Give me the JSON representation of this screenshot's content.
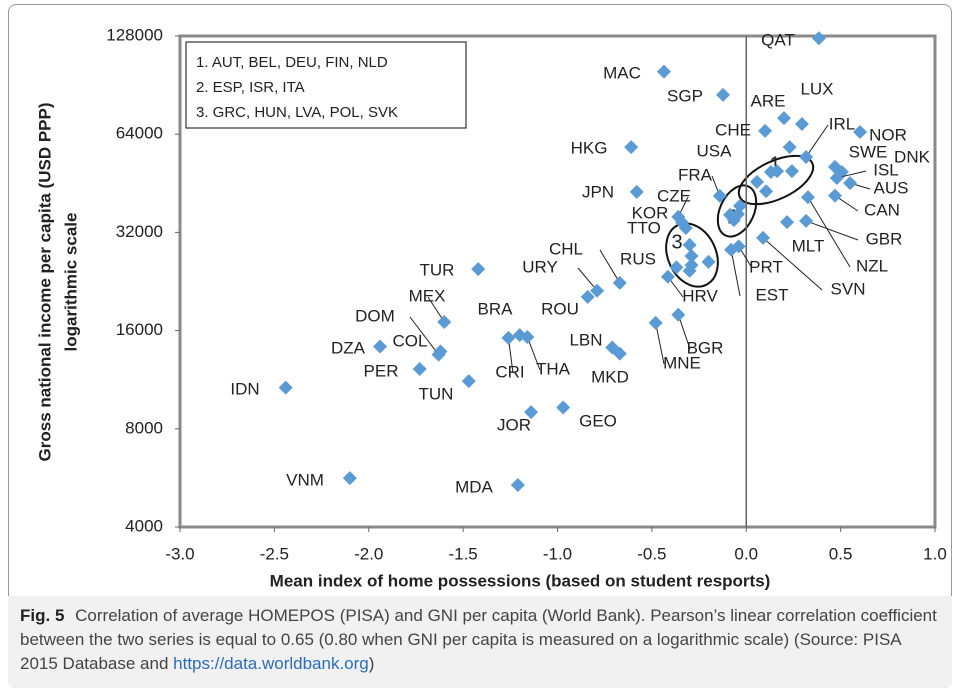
{
  "chart_data": {
    "type": "scatter",
    "xlabel": "Mean index of home possessions (based on student resports)",
    "ylabel": [
      "Gross national income per capita (USD PPP)",
      "logarithmic scale"
    ],
    "log_y": true,
    "color": "#5b9bd5",
    "xlim": [
      -3,
      1
    ],
    "xticks": [
      {
        "value": -3,
        "label": "-3.0"
      },
      {
        "value": -2.5,
        "label": "-2.5"
      },
      {
        "value": -2,
        "label": "-2.0"
      },
      {
        "value": -1.5,
        "label": "-1.5"
      },
      {
        "value": -1,
        "label": "-1.0"
      },
      {
        "value": -0.5,
        "label": "-0.5"
      },
      {
        "value": 0,
        "label": "0.0"
      },
      {
        "value": 0.5,
        "label": "0.5"
      },
      {
        "value": 1,
        "label": "1.0"
      }
    ],
    "ylim": [
      4000,
      128000
    ],
    "yticks": [
      4000,
      8000,
      16000,
      32000,
      64000,
      128000
    ],
    "labels": [
      "QAT",
      "MAC",
      "SGP",
      "ARE",
      "LUX",
      "CHE",
      "NOR",
      "HKG",
      "USA",
      "IRL",
      "SWE",
      "DNK",
      "ISL",
      "AUS",
      "CAN",
      "JPN",
      "FRA",
      "CZE",
      "KOR",
      "TTO",
      "GBR",
      "MLT",
      "NZL",
      "PRT",
      "SVN",
      "EST",
      "HRV",
      "RUS",
      "CHL",
      "URY",
      "ROU",
      "TUR",
      "BRA",
      "CRI",
      "THA",
      "MEX",
      "DOM",
      "COL",
      "DZA",
      "PER",
      "TUN",
      "IDN",
      "LBN",
      "MKD",
      "MNE",
      "BGR",
      "GEO",
      "JOR",
      "VNM",
      "MDA",
      null,
      null,
      null,
      null,
      null,
      null,
      null,
      null,
      null,
      null,
      null,
      null,
      null,
      null
    ],
    "x": [
      0.385,
      -0.436,
      -0.123,
      0.2,
      0.295,
      0.1,
      0.603,
      -0.61,
      0.23,
      0.317,
      0.47,
      0.507,
      0.48,
      0.55,
      0.47,
      -0.58,
      -0.14,
      -0.36,
      -0.34,
      -0.32,
      0.317,
      0.216,
      0.327,
      -0.04,
      0.089,
      -0.08,
      -0.415,
      -0.37,
      -0.67,
      -0.79,
      -0.84,
      -1.42,
      -1.2,
      -1.26,
      -1.16,
      -1.6,
      -1.63,
      -1.62,
      -1.94,
      -1.73,
      -1.47,
      -2.44,
      -0.71,
      -0.67,
      -0.48,
      -0.36,
      -0.97,
      -1.14,
      -2.1,
      -1.21,
      0.057,
      0.131,
      0.163,
      0.242,
      0.105,
      -0.086,
      -0.065,
      -0.044,
      -0.033,
      -0.3,
      -0.29,
      -0.29,
      -0.3,
      -0.2
    ],
    "values": [
      126000,
      99500,
      84500,
      71700,
      68800,
      65500,
      65000,
      58400,
      58400,
      54500,
      50800,
      49000,
      47000,
      45300,
      41500,
      42600,
      41400,
      35700,
      34300,
      33000,
      34700,
      34400,
      41000,
      29000,
      30800,
      28300,
      23400,
      25000,
      22400,
      21200,
      20300,
      24700,
      15500,
      15200,
      15300,
      17000,
      13500,
      13800,
      14300,
      12200,
      11200,
      10700,
      14200,
      13600,
      16900,
      17900,
      9300,
      9000,
      5650,
      5380,
      45700,
      49000,
      49300,
      49300,
      42800,
      36200,
      34900,
      36400,
      38600,
      29300,
      27100,
      25400,
      24400,
      26000
    ],
    "groups": [
      "1",
      "2",
      "3"
    ],
    "legend_box": [
      "1. AUT, BEL, DEU, FIN, NLD",
      "2. ESP, ISR, ITA",
      "3. GRC, HUN, LVA, POL, SVK"
    ]
  },
  "caption": {
    "label": "Fig. 5",
    "text": "Correlation of average HOMEPOS (PISA) and GNI per capita (World Bank). Pearson’s linear correlation coefficient between the two series is equal to 0.65 (0.80 when GNI per capita is measured on a logarithmic scale) (Source: PISA 2015 Database and",
    "link": "https://data.worldbank.org",
    "end": ")"
  }
}
